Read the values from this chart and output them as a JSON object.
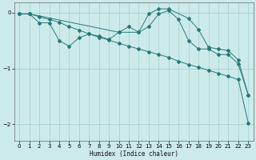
{
  "xlabel": "Humidex (Indice chaleur)",
  "background_color": "#cdeaea",
  "line_color": "#267a7a",
  "grid_color": "#a0cccc",
  "xlim": [
    -0.5,
    23.5
  ],
  "ylim": [
    -2.3,
    0.18
  ],
  "yticks": [
    0,
    -1,
    -2
  ],
  "xticks": [
    0,
    1,
    2,
    3,
    4,
    5,
    6,
    7,
    8,
    9,
    10,
    11,
    12,
    13,
    14,
    15,
    16,
    17,
    18,
    19,
    20,
    21,
    22,
    23
  ],
  "line1_x": [
    0,
    1,
    2,
    3,
    4,
    5,
    6,
    7,
    8,
    9,
    10,
    11,
    12,
    13,
    14,
    15,
    16,
    17,
    18,
    19,
    20,
    21,
    22,
    23
  ],
  "line1_y": [
    -0.02,
    -0.02,
    -0.18,
    -0.18,
    -0.5,
    -0.6,
    -0.45,
    -0.38,
    -0.42,
    -0.48,
    -0.35,
    -0.25,
    -0.35,
    -0.25,
    -0.02,
    0.04,
    -0.12,
    -0.5,
    -0.65,
    -0.65,
    -0.75,
    -0.75,
    -0.92,
    -1.48
  ],
  "line2_x": [
    0,
    1,
    2,
    3,
    4,
    5,
    6,
    7,
    8,
    9,
    10,
    11,
    12,
    13,
    14,
    15,
    16,
    17,
    18,
    19,
    20,
    21,
    22,
    23
  ],
  "line2_y": [
    -0.02,
    -0.02,
    -0.07,
    -0.12,
    -0.17,
    -0.25,
    -0.31,
    -0.38,
    -0.44,
    -0.49,
    -0.55,
    -0.6,
    -0.65,
    -0.7,
    -0.75,
    -0.8,
    -0.87,
    -0.93,
    -0.98,
    -1.03,
    -1.09,
    -1.14,
    -1.2,
    -1.98
  ],
  "line3_x": [
    0,
    1,
    10,
    12,
    13,
    14,
    15,
    17,
    18,
    19,
    20,
    21,
    22,
    23
  ],
  "line3_y": [
    -0.02,
    -0.02,
    -0.35,
    -0.35,
    -0.02,
    0.07,
    0.07,
    -0.1,
    -0.3,
    -0.62,
    -0.65,
    -0.68,
    -0.85,
    -1.48
  ]
}
